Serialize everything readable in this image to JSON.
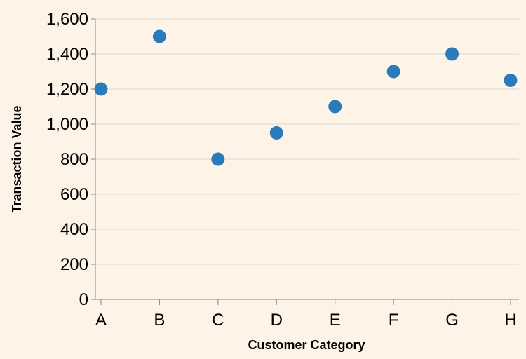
{
  "chart_data": {
    "type": "scatter",
    "title": "",
    "xlabel": "Customer Category",
    "ylabel": "Transaction Value",
    "categories": [
      "A",
      "B",
      "C",
      "D",
      "E",
      "F",
      "G",
      "H"
    ],
    "series": [
      {
        "values": [
          1200,
          1500,
          800,
          950,
          1100,
          1300,
          1400,
          1250
        ]
      }
    ],
    "ylim": [
      0,
      1600
    ],
    "yticks": [
      0,
      200,
      400,
      600,
      800,
      1000,
      1200,
      1400,
      1600
    ],
    "ytick_labels": [
      "0",
      "200",
      "400",
      "600",
      "800",
      "1,000",
      "1,200",
      "1,400",
      "1,600"
    ],
    "grid": true,
    "legend": "none",
    "colors": {
      "background": "#fdf3e6",
      "point": "#2b7bba",
      "grid": "#d9d9d9",
      "axis": "#888888"
    }
  }
}
